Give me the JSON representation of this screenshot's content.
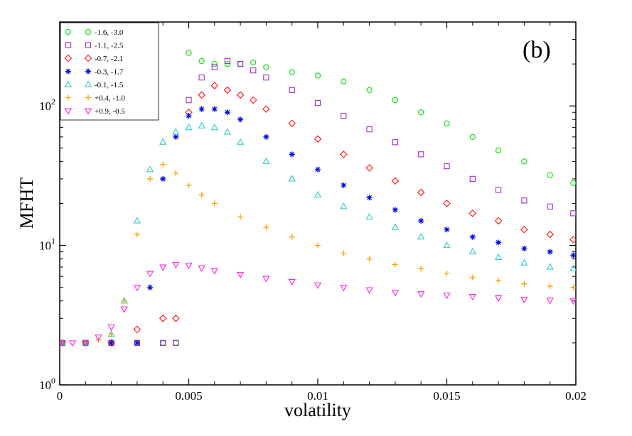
{
  "chart_data": {
    "type": "scatter",
    "title": "",
    "panel_label": "(b)",
    "xlabel": "volatility",
    "ylabel": "MFHT",
    "xlim": [
      0,
      0.02
    ],
    "ylim": [
      1,
      400
    ],
    "y_scale": "log",
    "grid": false,
    "legend_position": "top-left",
    "x_ticks": [
      {
        "value": 0,
        "label": "0"
      },
      {
        "value": 0.005,
        "label": "0.005"
      },
      {
        "value": 0.01,
        "label": "0.01"
      },
      {
        "value": 0.015,
        "label": "0.015"
      },
      {
        "value": 0.02,
        "label": "0.02"
      }
    ],
    "y_ticks": [
      {
        "value": 1,
        "base": "10",
        "exp": "0"
      },
      {
        "value": 10,
        "base": "10",
        "exp": "1"
      },
      {
        "value": 100,
        "base": "10",
        "exp": "2"
      }
    ],
    "series": [
      {
        "name": "-1.6, -3.0",
        "color": "#00dd00",
        "marker": "circle",
        "x": [
          0.0001,
          0.001,
          0.002,
          0.003,
          0.004,
          0.0045,
          0.005,
          0.0055,
          0.006,
          0.0065,
          0.007,
          0.0075,
          0.008,
          0.009,
          0.01,
          0.011,
          0.012,
          0.013,
          0.014,
          0.015,
          0.016,
          0.017,
          0.018,
          0.019,
          0.0199
        ],
        "y": [
          2,
          2,
          2,
          2,
          2,
          2,
          240,
          210,
          200,
          200,
          200,
          205,
          190,
          175,
          165,
          150,
          130,
          110,
          90,
          75,
          60,
          48,
          40,
          32,
          28
        ]
      },
      {
        "name": "-1.1, -2.5",
        "color": "#a030d0",
        "marker": "square",
        "x": [
          0.0001,
          0.001,
          0.002,
          0.003,
          0.004,
          0.0045,
          0.005,
          0.0055,
          0.006,
          0.0065,
          0.007,
          0.0075,
          0.008,
          0.009,
          0.01,
          0.011,
          0.012,
          0.013,
          0.014,
          0.015,
          0.016,
          0.017,
          0.018,
          0.019,
          0.0199
        ],
        "y": [
          2,
          2,
          2,
          2,
          2,
          2,
          110,
          160,
          190,
          210,
          200,
          180,
          160,
          130,
          105,
          85,
          68,
          55,
          45,
          37,
          30,
          25,
          21,
          19,
          17
        ]
      },
      {
        "name": "-0.7, -2.1",
        "color": "#ff1010",
        "marker": "diamond",
        "x": [
          0.0001,
          0.001,
          0.002,
          0.003,
          0.004,
          0.0045,
          0.005,
          0.0055,
          0.006,
          0.0065,
          0.007,
          0.0075,
          0.008,
          0.009,
          0.01,
          0.011,
          0.012,
          0.013,
          0.014,
          0.015,
          0.016,
          0.017,
          0.018,
          0.019,
          0.0199
        ],
        "y": [
          2,
          2,
          2,
          2.5,
          3,
          3,
          90,
          120,
          140,
          130,
          120,
          110,
          95,
          75,
          58,
          45,
          36,
          29,
          24,
          20,
          17,
          15,
          13,
          12,
          11
        ]
      },
      {
        "name": "-0.3, -1.7",
        "color": "#0010e0",
        "marker": "star",
        "x": [
          0.0001,
          0.001,
          0.002,
          0.003,
          0.0035,
          0.004,
          0.0045,
          0.005,
          0.0055,
          0.006,
          0.0065,
          0.007,
          0.008,
          0.009,
          0.01,
          0.011,
          0.012,
          0.013,
          0.014,
          0.015,
          0.016,
          0.017,
          0.018,
          0.019,
          0.0199
        ],
        "y": [
          2,
          2,
          2,
          2,
          5,
          30,
          60,
          85,
          95,
          95,
          90,
          80,
          60,
          45,
          35,
          27,
          22,
          18,
          15,
          13,
          11.5,
          10.5,
          9.5,
          9,
          8.5
        ]
      },
      {
        "name": "-0.1, -1.5",
        "color": "#30c8c8",
        "marker": "triangle-up",
        "x": [
          0.0001,
          0.001,
          0.002,
          0.0025,
          0.003,
          0.0035,
          0.004,
          0.0045,
          0.005,
          0.0055,
          0.006,
          0.0065,
          0.007,
          0.008,
          0.009,
          0.01,
          0.011,
          0.012,
          0.013,
          0.014,
          0.015,
          0.016,
          0.017,
          0.018,
          0.019,
          0.0199
        ],
        "y": [
          2,
          2,
          2.3,
          4,
          15,
          35,
          55,
          65,
          70,
          72,
          70,
          65,
          55,
          40,
          30,
          23,
          19,
          16,
          13.5,
          11.5,
          10,
          9,
          8.2,
          7.5,
          7,
          6.8
        ]
      },
      {
        "name": "+0.4, -1.0",
        "color": "#ffa000",
        "marker": "plus",
        "x": [
          0.0001,
          0.001,
          0.0015,
          0.002,
          0.0025,
          0.003,
          0.0035,
          0.004,
          0.0045,
          0.005,
          0.0055,
          0.006,
          0.007,
          0.008,
          0.009,
          0.01,
          0.011,
          0.012,
          0.013,
          0.014,
          0.015,
          0.016,
          0.017,
          0.018,
          0.019,
          0.0199
        ],
        "y": [
          2,
          2,
          2.1,
          2.3,
          4,
          12,
          30,
          38,
          33,
          27,
          23,
          20,
          16,
          13.5,
          11.5,
          10,
          8.8,
          8,
          7.3,
          6.8,
          6.3,
          5.9,
          5.6,
          5.3,
          5.1,
          5
        ]
      },
      {
        "name": "+0.9, -0.5",
        "color": "#ff20e0",
        "marker": "triangle-down",
        "x": [
          0.0001,
          0.0005,
          0.001,
          0.0015,
          0.002,
          0.0025,
          0.003,
          0.0035,
          0.004,
          0.0045,
          0.005,
          0.0055,
          0.006,
          0.007,
          0.008,
          0.009,
          0.01,
          0.011,
          0.012,
          0.013,
          0.014,
          0.015,
          0.016,
          0.017,
          0.018,
          0.019,
          0.0199
        ],
        "y": [
          2,
          2,
          2,
          2.2,
          2.6,
          3.5,
          5,
          6.3,
          7,
          7.3,
          7.2,
          6.9,
          6.6,
          6.2,
          5.8,
          5.5,
          5.2,
          5,
          4.8,
          4.6,
          4.5,
          4.4,
          4.3,
          4.2,
          4.1,
          4.05,
          4
        ]
      }
    ]
  }
}
